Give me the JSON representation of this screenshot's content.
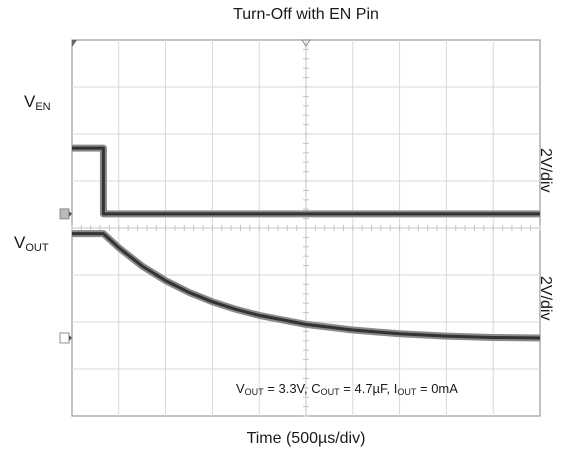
{
  "chart_data": {
    "type": "line",
    "title": "Turn-Off with EN Pin",
    "xlabel": "Time (500µs/div)",
    "divisions": {
      "x": 10,
      "y": 8
    },
    "series": [
      {
        "name_main": "V",
        "name_sub": "EN",
        "scale": "2V/div",
        "unit": "div",
        "x": [
          0,
          0.67,
          0.67,
          10
        ],
        "y": [
          1.7,
          1.7,
          0.3,
          0.3
        ]
      },
      {
        "name_main": "V",
        "name_sub": "OUT",
        "scale": "2V/div",
        "unit": "div",
        "x": [
          0,
          0.67,
          1.0,
          1.5,
          2.0,
          2.5,
          3.0,
          3.5,
          4.0,
          5.0,
          6.0,
          7.0,
          8.0,
          9.0,
          10.0
        ],
        "y": [
          -0.12,
          -0.12,
          -0.42,
          -0.81,
          -1.12,
          -1.37,
          -1.57,
          -1.73,
          -1.86,
          -2.05,
          -2.17,
          -2.25,
          -2.3,
          -2.33,
          -2.34
        ]
      }
    ],
    "conditions": {
      "vout_main": "V",
      "vout_sub": "OUT",
      "vout_val": " = 3.3V, ",
      "cout_main": "C",
      "cout_sub": "OUT",
      "cout_val": " = 4.7µF, ",
      "iout_main": "I",
      "iout_sub": "OUT",
      "iout_val": " = 0mA"
    }
  }
}
